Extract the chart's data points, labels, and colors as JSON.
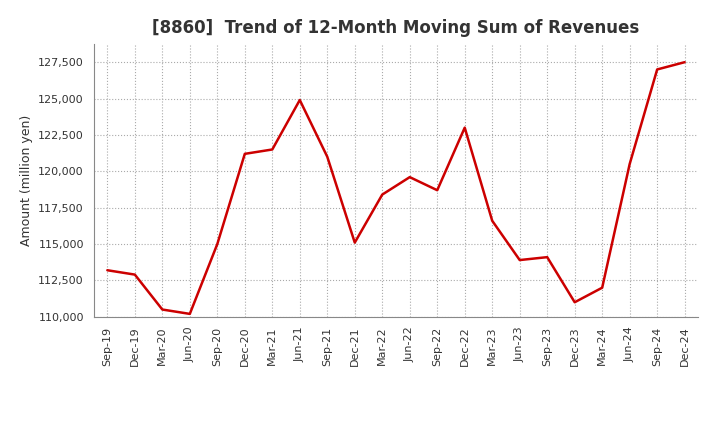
{
  "title": "[8860]  Trend of 12-Month Moving Sum of Revenues",
  "ylabel": "Amount (million yen)",
  "line_color": "#cc0000",
  "line_width": 1.8,
  "background_color": "#ffffff",
  "plot_bg_color": "#ffffff",
  "grid_color": "#aaaaaa",
  "grid_style": ":",
  "ylim": [
    110000,
    128750
  ],
  "yticks": [
    110000,
    112500,
    115000,
    117500,
    120000,
    122500,
    125000,
    127500
  ],
  "labels": [
    "Sep-19",
    "Dec-19",
    "Mar-20",
    "Jun-20",
    "Sep-20",
    "Dec-20",
    "Mar-21",
    "Jun-21",
    "Sep-21",
    "Dec-21",
    "Mar-22",
    "Jun-22",
    "Sep-22",
    "Dec-22",
    "Mar-23",
    "Jun-23",
    "Sep-23",
    "Dec-23",
    "Mar-24",
    "Jun-24",
    "Sep-24",
    "Dec-24"
  ],
  "values": [
    113200,
    112900,
    110500,
    110200,
    115000,
    121200,
    121500,
    124900,
    121000,
    115100,
    118400,
    119600,
    118700,
    123000,
    116600,
    113900,
    114100,
    111000,
    112000,
    120500,
    127000,
    127500
  ],
  "title_fontsize": 12,
  "axis_label_fontsize": 9,
  "tick_fontsize": 8,
  "text_color": "#333333"
}
